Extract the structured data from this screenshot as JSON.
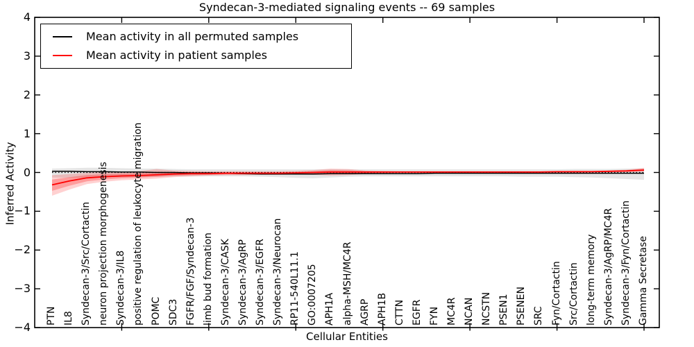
{
  "title": "Syndecan-3-mediated signaling events -- 69 samples",
  "legend": {
    "items": [
      {
        "label": "Mean activity in all permuted samples",
        "color": "#000000"
      },
      {
        "label": "Mean activity in patient samples",
        "color": "#ff0000"
      }
    ]
  },
  "axes": {
    "xlabel": "Cellular Entities",
    "ylabel": "Inferred Activity",
    "y_tick_labels": [
      "4",
      "3",
      "2",
      "1",
      "0",
      "−1",
      "−2",
      "−3",
      "−4"
    ],
    "y_tick_values": [
      4,
      3,
      2,
      1,
      0,
      -1,
      -2,
      -3,
      -4
    ]
  },
  "chart_data": {
    "type": "line",
    "title": "Syndecan-3-mediated signaling events -- 69 samples",
    "xlabel": "Cellular Entities",
    "ylabel": "Inferred Activity",
    "ylim": [
      -4,
      4
    ],
    "grid": false,
    "legend_position": "upper left",
    "zero_line": 0,
    "x_tick_categories": [
      5,
      10,
      15,
      20,
      25,
      30,
      35
    ],
    "categories": [
      "PTN",
      "IL8",
      "Syndecan-3/Src/Cortactin",
      "neuron projection morphogenesis",
      "Syndecan-3/IL8",
      "positive regulation of leukocyte migration",
      "POMC",
      "SDC3",
      "FGFR/FGF/Syndecan-3",
      "limb bud formation",
      "Syndecan-3/CASK",
      "Syndecan-3/AgRP",
      "Syndecan-3/EGFR",
      "Syndecan-3/Neurocan",
      "RP11-540L11.1",
      "GO:0007205",
      "APH1A",
      "alpha-MSH/MC4R",
      "AGRP",
      "APH1B",
      "CTTN",
      "EGFR",
      "FYN",
      "MC4R",
      "NCAN",
      "NCSTN",
      "PSEN1",
      "PSENEN",
      "SRC",
      "Fyn/Cortactin",
      "Src/Cortactin",
      "long-term memory",
      "Syndecan-3/AgRP/MC4R",
      "Syndecan-3/Fyn/Cortactin",
      "Gamma Secretase"
    ],
    "series": [
      {
        "name": "Mean activity in all permuted samples",
        "color": "#000000",
        "linewidth": 1.5,
        "values": [
          0.03,
          0.03,
          0.02,
          0.02,
          0.01,
          0.01,
          0.0,
          0.0,
          -0.01,
          -0.01,
          -0.02,
          -0.03,
          -0.04,
          -0.04,
          -0.04,
          -0.04,
          -0.03,
          -0.03,
          -0.03,
          -0.03,
          -0.03,
          -0.03,
          -0.02,
          -0.02,
          -0.02,
          -0.02,
          -0.02,
          -0.02,
          -0.02,
          -0.02,
          -0.02,
          -0.02,
          -0.02,
          -0.02,
          -0.02
        ]
      },
      {
        "name": "Mean activity in patient samples",
        "color": "#ff0000",
        "linewidth": 1.8,
        "values": [
          -0.32,
          -0.22,
          -0.14,
          -0.11,
          -0.09,
          -0.08,
          -0.06,
          -0.04,
          -0.03,
          -0.03,
          -0.02,
          -0.02,
          -0.02,
          -0.02,
          -0.01,
          0.0,
          0.01,
          0.01,
          0.01,
          0.01,
          0.01,
          0.01,
          0.01,
          0.01,
          0.01,
          0.01,
          0.01,
          0.01,
          0.01,
          0.02,
          0.02,
          0.02,
          0.03,
          0.04,
          0.06
        ]
      }
    ],
    "bands": [
      {
        "name": "permuted-samples-range",
        "color": "#000000",
        "opacity": 0.1,
        "upper": [
          0.1,
          0.11,
          0.12,
          0.12,
          0.11,
          0.1,
          0.1,
          0.09,
          0.08,
          0.08,
          0.08,
          0.08,
          0.08,
          0.08,
          0.08,
          0.08,
          0.08,
          0.08,
          0.08,
          0.08,
          0.08,
          0.08,
          0.08,
          0.08,
          0.08,
          0.08,
          0.08,
          0.08,
          0.08,
          0.08,
          0.09,
          0.09,
          0.09,
          0.1,
          0.1
        ],
        "lower": [
          -0.13,
          -0.14,
          -0.14,
          -0.13,
          -0.12,
          -0.12,
          -0.11,
          -0.1,
          -0.1,
          -0.1,
          -0.1,
          -0.1,
          -0.11,
          -0.12,
          -0.14,
          -0.15,
          -0.13,
          -0.11,
          -0.1,
          -0.1,
          -0.1,
          -0.1,
          -0.1,
          -0.1,
          -0.1,
          -0.1,
          -0.1,
          -0.11,
          -0.11,
          -0.11,
          -0.12,
          -0.13,
          -0.15,
          -0.17,
          -0.19
        ]
      },
      {
        "name": "patient-samples-range",
        "color": "#ff0000",
        "opacity": 0.18,
        "inner_opacity": 0.25,
        "inner_fraction": 0.55,
        "mean_series": 1,
        "upper": [
          -0.07,
          -0.04,
          -0.01,
          0.01,
          0.02,
          0.03,
          0.09,
          0.05,
          0.04,
          0.03,
          0.03,
          0.03,
          0.03,
          0.03,
          0.04,
          0.06,
          0.1,
          0.09,
          0.05,
          0.04,
          0.03,
          0.03,
          0.03,
          0.03,
          0.03,
          0.03,
          0.03,
          0.03,
          0.03,
          0.03,
          0.04,
          0.04,
          0.05,
          0.07,
          0.12
        ],
        "lower": [
          -0.6,
          -0.44,
          -0.3,
          -0.24,
          -0.2,
          -0.18,
          -0.16,
          -0.12,
          -0.1,
          -0.08,
          -0.07,
          -0.07,
          -0.06,
          -0.06,
          -0.05,
          -0.06,
          -0.08,
          -0.07,
          -0.04,
          -0.02,
          -0.01,
          -0.01,
          -0.01,
          -0.01,
          -0.01,
          -0.01,
          -0.01,
          -0.01,
          -0.01,
          -0.01,
          -0.01,
          0.0,
          0.0,
          0.01,
          0.02
        ]
      }
    ]
  }
}
